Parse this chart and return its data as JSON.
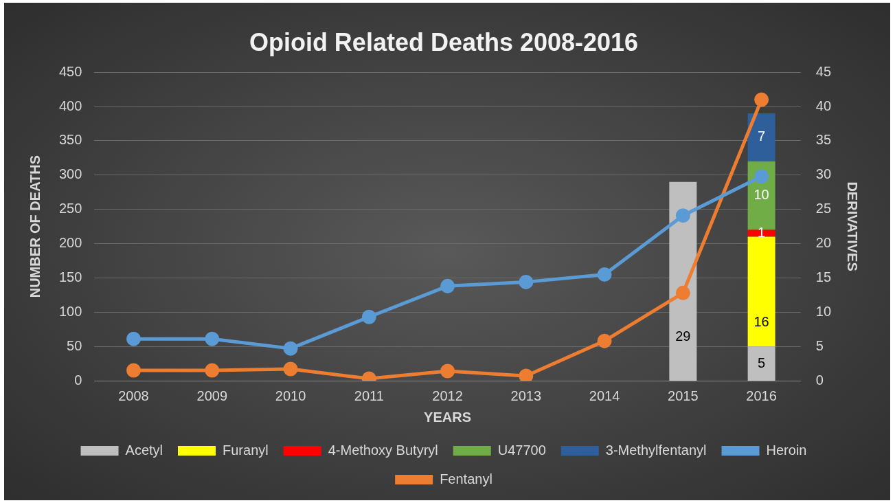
{
  "chart_data": {
    "type": "bar",
    "title": "Opioid Related Deaths 2008-2016",
    "xlabel": "YEARS",
    "ylabel": "NUMBER OF DEATHS",
    "y2label": "DERIVATIVES",
    "categories": [
      "2008",
      "2009",
      "2010",
      "2011",
      "2012",
      "2013",
      "2014",
      "2015",
      "2016"
    ],
    "stacked": true,
    "grid": "y",
    "legend": "bottom",
    "marker": "circle",
    "ylim": [
      0,
      450
    ],
    "yticks": [
      0,
      50,
      100,
      150,
      200,
      250,
      300,
      350,
      400,
      450
    ],
    "y2lim": [
      0,
      45
    ],
    "y2ticks": [
      0,
      5,
      10,
      15,
      20,
      25,
      30,
      35,
      40,
      45
    ],
    "series": [
      {
        "name": "Acetyl",
        "axis": "y2",
        "color": "#bfbfbf",
        "values": [
          null,
          null,
          null,
          null,
          null,
          null,
          null,
          29,
          5
        ],
        "value_labels": [
          null,
          null,
          null,
          null,
          null,
          null,
          null,
          "29",
          "5"
        ]
      },
      {
        "name": "Furanyl",
        "axis": "y2",
        "color": "#ffff00",
        "values": [
          null,
          null,
          null,
          null,
          null,
          null,
          null,
          null,
          16
        ],
        "value_labels": [
          null,
          null,
          null,
          null,
          null,
          null,
          null,
          null,
          "16"
        ]
      },
      {
        "name": "4-Methoxy Butyryl",
        "axis": "y2",
        "color": "#ff0000",
        "values": [
          null,
          null,
          null,
          null,
          null,
          null,
          null,
          null,
          1
        ],
        "value_labels": [
          null,
          null,
          null,
          null,
          null,
          null,
          null,
          null,
          "1"
        ]
      },
      {
        "name": "U47700",
        "axis": "y2",
        "color": "#70ad47",
        "values": [
          null,
          null,
          null,
          null,
          null,
          null,
          null,
          null,
          10
        ],
        "value_labels": [
          null,
          null,
          null,
          null,
          null,
          null,
          null,
          null,
          "10"
        ]
      },
      {
        "name": "3-Methylfentanyl",
        "axis": "y2",
        "color": "#2e5f9a",
        "values": [
          null,
          null,
          null,
          null,
          null,
          null,
          null,
          null,
          7
        ],
        "value_labels": [
          null,
          null,
          null,
          null,
          null,
          null,
          null,
          null,
          "7"
        ]
      },
      {
        "name": "Heroin",
        "type": "line",
        "color": "#5b9bd5",
        "values": [
          61,
          61,
          47,
          93,
          138,
          144,
          155,
          241,
          298
        ]
      },
      {
        "name": "Fentanyl",
        "type": "line",
        "color": "#ed7d31",
        "values": [
          15,
          15,
          17,
          3,
          14,
          7,
          58,
          128,
          410
        ]
      }
    ]
  }
}
